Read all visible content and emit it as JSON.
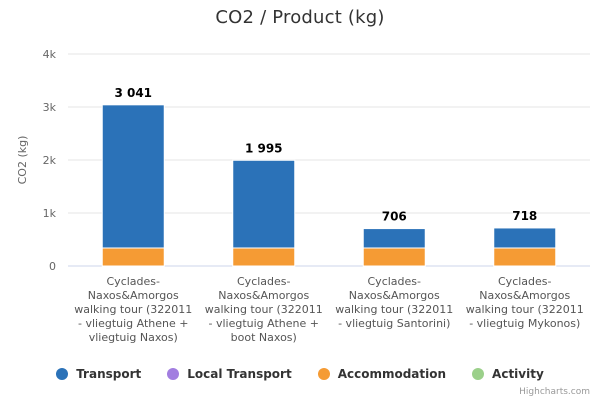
{
  "chart_data": {
    "type": "bar",
    "stacked": true,
    "title": "CO2 / Product (kg)",
    "ylabel": "CO2 (kg)",
    "xlabel": "",
    "ylim": [
      0,
      4000
    ],
    "yticks": [
      0,
      1000,
      2000,
      3000,
      4000
    ],
    "ytick_labels": [
      "0",
      "1k",
      "2k",
      "3k",
      "4k"
    ],
    "categories": [
      [
        "Cyclades-",
        "Naxos&Amorgos",
        "walking tour (322011",
        "- vliegtuig Athene +",
        "vliegtuig Naxos)"
      ],
      [
        "Cyclades-",
        "Naxos&Amorgos",
        "walking tour (322011",
        "- vliegtuig Athene +",
        "boot Naxos)"
      ],
      [
        "Cyclades-",
        "Naxos&Amorgos",
        "walking tour (322011",
        "- vliegtuig Santorini)"
      ],
      [
        "Cyclades-",
        "Naxos&Amorgos",
        "walking tour (322011",
        "- vliegtuig Mykonos)"
      ]
    ],
    "series": [
      {
        "name": "Transport",
        "color": "#2b72b8",
        "values": [
          2701,
          1655,
          366,
          378
        ]
      },
      {
        "name": "Local Transport",
        "color": "#a27ee0",
        "values": [
          0,
          0,
          0,
          0
        ]
      },
      {
        "name": "Accommodation",
        "color": "#f59b34",
        "values": [
          340,
          340,
          340,
          340
        ]
      },
      {
        "name": "Activity",
        "color": "#9bd08a",
        "values": [
          0,
          0,
          0,
          0
        ]
      }
    ],
    "totals": [
      3041,
      1995,
      706,
      718
    ],
    "total_labels": [
      "3 041",
      "1 995",
      "706",
      "718"
    ],
    "legend_position": "bottom"
  },
  "credits": "Highcharts.com"
}
